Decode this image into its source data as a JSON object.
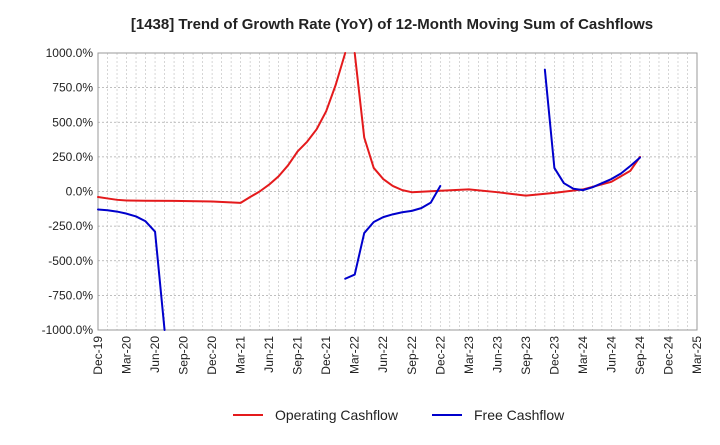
{
  "chart_data": {
    "type": "line",
    "title": "[1438]  Trend of Growth Rate (YoY) of 12-Month Moving Sum of Cashflows",
    "xlabel": "",
    "ylabel": "",
    "ylim": [
      -1000,
      1000
    ],
    "y_ticks": [
      1000,
      750,
      500,
      250,
      0,
      -250,
      -500,
      -750,
      -1000
    ],
    "y_tick_labels": [
      "1000.0%",
      "750.0%",
      "500.0%",
      "250.0%",
      "0.0%",
      "-250.0%",
      "-500.0%",
      "-750.0%",
      "-1000.0%"
    ],
    "x_tick_labels": [
      "Dec-19",
      "Mar-20",
      "Jun-20",
      "Sep-20",
      "Dec-20",
      "Mar-21",
      "Jun-21",
      "Sep-21",
      "Dec-21",
      "Mar-22",
      "Jun-22",
      "Sep-22",
      "Dec-22",
      "Mar-23",
      "Jun-23",
      "Sep-23",
      "Dec-23",
      "Mar-24",
      "Jun-24",
      "Sep-24",
      "Dec-24",
      "Mar-25"
    ],
    "grid": true,
    "legend_position": "bottom",
    "series": [
      {
        "name": "Operating Cashflow",
        "color": "#e41a1c",
        "points": [
          [
            "2019-12",
            -40
          ],
          [
            "2020-01",
            -50
          ],
          [
            "2020-02",
            -60
          ],
          [
            "2020-03",
            -65
          ],
          [
            "2020-05",
            -67
          ],
          [
            "2020-08",
            -68
          ],
          [
            "2020-12",
            -72
          ],
          [
            "2021-03",
            -82
          ],
          [
            "2021-04",
            -40
          ],
          [
            "2021-05",
            0
          ],
          [
            "2021-06",
            50
          ],
          [
            "2021-07",
            110
          ],
          [
            "2021-08",
            190
          ],
          [
            "2021-09",
            290
          ],
          [
            "2021-10",
            360
          ],
          [
            "2021-11",
            450
          ],
          [
            "2021-12",
            580
          ],
          [
            "2022-01",
            770
          ],
          [
            "2022-02",
            1000
          ],
          [
            "2022-02",
            null
          ],
          [
            "2022-03",
            1000
          ],
          [
            "2022-04",
            390
          ],
          [
            "2022-05",
            170
          ],
          [
            "2022-06",
            90
          ],
          [
            "2022-07",
            40
          ],
          [
            "2022-08",
            10
          ],
          [
            "2022-09",
            -5
          ],
          [
            "2022-12",
            5
          ],
          [
            "2023-03",
            15
          ],
          [
            "2023-06",
            -5
          ],
          [
            "2023-09",
            -30
          ],
          [
            "2023-12",
            -10
          ],
          [
            "2024-03",
            15
          ],
          [
            "2024-06",
            70
          ],
          [
            "2024-08",
            150
          ],
          [
            "2024-09",
            250
          ]
        ]
      },
      {
        "name": "Free Cashflow",
        "color": "#0000cc",
        "points": [
          [
            "2019-12",
            -130
          ],
          [
            "2020-01",
            -135
          ],
          [
            "2020-02",
            -145
          ],
          [
            "2020-03",
            -160
          ],
          [
            "2020-04",
            -180
          ],
          [
            "2020-05",
            -215
          ],
          [
            "2020-06",
            -290
          ],
          [
            "2020-07",
            -1000
          ],
          [
            "2020-07",
            null
          ],
          [
            "2022-02",
            -630
          ],
          [
            "2022-03",
            -600
          ],
          [
            "2022-04",
            -300
          ],
          [
            "2022-05",
            -220
          ],
          [
            "2022-06",
            -185
          ],
          [
            "2022-07",
            -165
          ],
          [
            "2022-08",
            -150
          ],
          [
            "2022-09",
            -140
          ],
          [
            "2022-10",
            -120
          ],
          [
            "2022-11",
            -80
          ],
          [
            "2022-12",
            40
          ],
          [
            "2022-12",
            null
          ],
          [
            "2023-11",
            880
          ],
          [
            "2023-12",
            170
          ],
          [
            "2024-01",
            60
          ],
          [
            "2024-02",
            20
          ],
          [
            "2024-03",
            10
          ],
          [
            "2024-04",
            30
          ],
          [
            "2024-05",
            60
          ],
          [
            "2024-06",
            90
          ],
          [
            "2024-07",
            130
          ],
          [
            "2024-08",
            185
          ],
          [
            "2024-09",
            245
          ]
        ]
      }
    ]
  }
}
